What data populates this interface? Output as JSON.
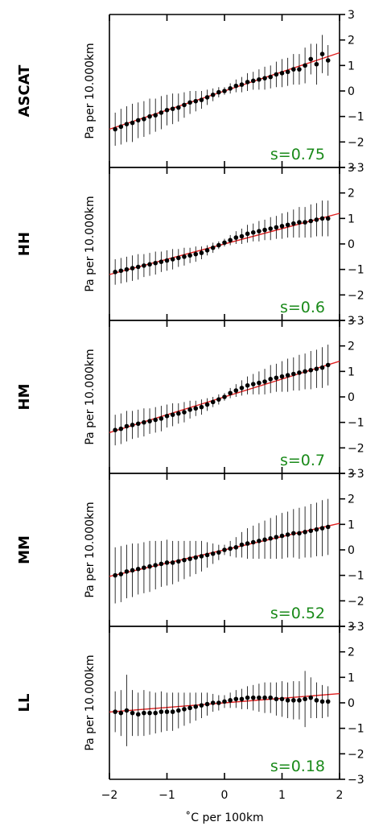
{
  "chart_data": {
    "type": "scatter",
    "xlabel": "$^\\circ$C per 100km",
    "ylabel": "Pa per 10.000km",
    "xlim": [
      -2,
      2
    ],
    "ylim": [
      -3,
      3
    ],
    "xticks": [
      -2,
      -1,
      0,
      1,
      2
    ],
    "yticks": [
      -3,
      -2,
      -1,
      0,
      1,
      2,
      3
    ],
    "xtick_labels": [
      "−2",
      "−1",
      "0",
      "1",
      "2"
    ],
    "ytick_labels": [
      "−3",
      "−2",
      "−1",
      "0",
      "1",
      "2",
      "3"
    ],
    "xlabel_display": "˚C per 100km",
    "fit_color": "#e02020",
    "point_color": "#000000",
    "slope_text_color": "#1a8a1a",
    "panels": [
      {
        "name": "ASCAT",
        "slope_label": "s=0.75",
        "fit": {
          "slope": 0.75,
          "intercept": 0.0
        },
        "x": [
          -1.9,
          -1.8,
          -1.7,
          -1.6,
          -1.5,
          -1.4,
          -1.3,
          -1.2,
          -1.1,
          -1.0,
          -0.9,
          -0.8,
          -0.7,
          -0.6,
          -0.5,
          -0.4,
          -0.3,
          -0.2,
          -0.1,
          0.0,
          0.1,
          0.2,
          0.3,
          0.4,
          0.5,
          0.6,
          0.7,
          0.8,
          0.9,
          1.0,
          1.1,
          1.2,
          1.3,
          1.4,
          1.5,
          1.6,
          1.7,
          1.8
        ],
        "y": [
          -1.5,
          -1.4,
          -1.3,
          -1.25,
          -1.15,
          -1.1,
          -1.0,
          -0.95,
          -0.85,
          -0.75,
          -0.7,
          -0.65,
          -0.55,
          -0.45,
          -0.4,
          -0.35,
          -0.25,
          -0.15,
          -0.05,
          0.0,
          0.1,
          0.2,
          0.25,
          0.35,
          0.4,
          0.45,
          0.5,
          0.55,
          0.65,
          0.7,
          0.75,
          0.85,
          0.85,
          1.0,
          1.25,
          1.05,
          1.45,
          1.2
        ],
        "err": [
          0.65,
          0.7,
          0.7,
          0.75,
          0.7,
          0.7,
          0.7,
          0.65,
          0.65,
          0.6,
          0.6,
          0.55,
          0.5,
          0.45,
          0.4,
          0.35,
          0.3,
          0.25,
          0.2,
          0.15,
          0.2,
          0.25,
          0.3,
          0.35,
          0.35,
          0.4,
          0.45,
          0.45,
          0.5,
          0.55,
          0.55,
          0.6,
          0.6,
          0.7,
          0.6,
          0.8,
          0.75,
          0.6
        ]
      },
      {
        "name": "HH",
        "slope_label": "s=0.6",
        "fit": {
          "slope": 0.6,
          "intercept": 0.0
        },
        "x": [
          -1.9,
          -1.8,
          -1.7,
          -1.6,
          -1.5,
          -1.4,
          -1.3,
          -1.2,
          -1.1,
          -1.0,
          -0.9,
          -0.8,
          -0.7,
          -0.6,
          -0.5,
          -0.4,
          -0.3,
          -0.2,
          -0.1,
          0.0,
          0.1,
          0.2,
          0.3,
          0.4,
          0.5,
          0.6,
          0.7,
          0.8,
          0.9,
          1.0,
          1.1,
          1.2,
          1.3,
          1.4,
          1.5,
          1.6,
          1.7,
          1.8
        ],
        "y": [
          -1.1,
          -1.05,
          -1.0,
          -0.95,
          -0.9,
          -0.85,
          -0.8,
          -0.75,
          -0.7,
          -0.65,
          -0.6,
          -0.55,
          -0.5,
          -0.45,
          -0.4,
          -0.35,
          -0.25,
          -0.15,
          -0.05,
          0.05,
          0.15,
          0.25,
          0.3,
          0.4,
          0.45,
          0.5,
          0.55,
          0.6,
          0.65,
          0.7,
          0.75,
          0.8,
          0.85,
          0.85,
          0.9,
          0.95,
          1.0,
          1.0
        ],
        "err": [
          0.5,
          0.5,
          0.5,
          0.5,
          0.5,
          0.45,
          0.45,
          0.45,
          0.4,
          0.4,
          0.4,
          0.35,
          0.35,
          0.3,
          0.3,
          0.25,
          0.2,
          0.2,
          0.15,
          0.15,
          0.2,
          0.25,
          0.3,
          0.35,
          0.35,
          0.4,
          0.4,
          0.45,
          0.45,
          0.5,
          0.5,
          0.55,
          0.6,
          0.6,
          0.65,
          0.65,
          0.7,
          0.7
        ]
      },
      {
        "name": "HM",
        "slope_label": "s=0.7",
        "fit": {
          "slope": 0.7,
          "intercept": 0.0
        },
        "x": [
          -1.9,
          -1.8,
          -1.7,
          -1.6,
          -1.5,
          -1.4,
          -1.3,
          -1.2,
          -1.1,
          -1.0,
          -0.9,
          -0.8,
          -0.7,
          -0.6,
          -0.5,
          -0.4,
          -0.3,
          -0.2,
          -0.1,
          0.0,
          0.1,
          0.2,
          0.3,
          0.4,
          0.5,
          0.6,
          0.7,
          0.8,
          0.9,
          1.0,
          1.1,
          1.2,
          1.3,
          1.4,
          1.5,
          1.6,
          1.7,
          1.8
        ],
        "y": [
          -1.3,
          -1.25,
          -1.15,
          -1.1,
          -1.05,
          -1.0,
          -0.95,
          -0.9,
          -0.85,
          -0.75,
          -0.7,
          -0.65,
          -0.6,
          -0.5,
          -0.45,
          -0.4,
          -0.3,
          -0.2,
          -0.1,
          0.0,
          0.15,
          0.25,
          0.35,
          0.45,
          0.5,
          0.55,
          0.6,
          0.7,
          0.75,
          0.8,
          0.85,
          0.9,
          0.95,
          1.0,
          1.05,
          1.1,
          1.15,
          1.25
        ],
        "err": [
          0.6,
          0.6,
          0.6,
          0.55,
          0.55,
          0.55,
          0.5,
          0.5,
          0.5,
          0.45,
          0.45,
          0.4,
          0.4,
          0.35,
          0.3,
          0.3,
          0.25,
          0.2,
          0.2,
          0.15,
          0.2,
          0.25,
          0.3,
          0.35,
          0.4,
          0.45,
          0.5,
          0.55,
          0.55,
          0.6,
          0.65,
          0.65,
          0.7,
          0.7,
          0.75,
          0.75,
          0.8,
          0.8
        ]
      },
      {
        "name": "MM",
        "slope_label": "s=0.52",
        "fit": {
          "slope": 0.52,
          "intercept": 0.0
        },
        "x": [
          -1.9,
          -1.8,
          -1.7,
          -1.6,
          -1.5,
          -1.4,
          -1.3,
          -1.2,
          -1.1,
          -1.0,
          -0.9,
          -0.8,
          -0.7,
          -0.6,
          -0.5,
          -0.4,
          -0.3,
          -0.2,
          -0.1,
          0.0,
          0.1,
          0.2,
          0.3,
          0.4,
          0.5,
          0.6,
          0.7,
          0.8,
          0.9,
          1.0,
          1.1,
          1.2,
          1.3,
          1.4,
          1.5,
          1.6,
          1.7,
          1.8
        ],
        "y": [
          -1.0,
          -0.95,
          -0.85,
          -0.8,
          -0.75,
          -0.7,
          -0.65,
          -0.6,
          -0.55,
          -0.5,
          -0.5,
          -0.45,
          -0.4,
          -0.35,
          -0.3,
          -0.25,
          -0.2,
          -0.15,
          -0.1,
          0.0,
          0.05,
          0.1,
          0.2,
          0.25,
          0.3,
          0.35,
          0.4,
          0.45,
          0.5,
          0.55,
          0.6,
          0.65,
          0.65,
          0.7,
          0.75,
          0.8,
          0.85,
          0.9
        ],
        "err": [
          1.1,
          1.1,
          1.05,
          1.05,
          1.0,
          1.0,
          1.0,
          0.95,
          0.9,
          0.9,
          0.85,
          0.8,
          0.75,
          0.7,
          0.65,
          0.6,
          0.5,
          0.4,
          0.3,
          0.2,
          0.3,
          0.4,
          0.5,
          0.6,
          0.65,
          0.7,
          0.75,
          0.8,
          0.85,
          0.9,
          0.9,
          0.95,
          1.0,
          1.0,
          1.05,
          1.05,
          1.1,
          1.1
        ]
      },
      {
        "name": "LL",
        "slope_label": "s=0.18",
        "fit": {
          "slope": 0.18,
          "intercept": 0.0
        },
        "x": [
          -1.9,
          -1.8,
          -1.7,
          -1.6,
          -1.5,
          -1.4,
          -1.3,
          -1.2,
          -1.1,
          -1.0,
          -0.9,
          -0.8,
          -0.7,
          -0.6,
          -0.5,
          -0.4,
          -0.3,
          -0.2,
          -0.1,
          0.0,
          0.1,
          0.2,
          0.3,
          0.4,
          0.5,
          0.6,
          0.7,
          0.8,
          0.9,
          1.0,
          1.1,
          1.2,
          1.3,
          1.4,
          1.5,
          1.6,
          1.7,
          1.8
        ],
        "y": [
          -0.35,
          -0.4,
          -0.3,
          -0.4,
          -0.45,
          -0.4,
          -0.4,
          -0.4,
          -0.35,
          -0.35,
          -0.35,
          -0.3,
          -0.25,
          -0.2,
          -0.15,
          -0.1,
          -0.05,
          0.0,
          0.0,
          0.05,
          0.1,
          0.15,
          0.15,
          0.2,
          0.2,
          0.2,
          0.2,
          0.2,
          0.15,
          0.15,
          0.1,
          0.1,
          0.1,
          0.15,
          0.2,
          0.1,
          0.05,
          0.05
        ],
        "err": [
          0.8,
          0.9,
          1.4,
          0.9,
          0.85,
          0.9,
          0.85,
          0.8,
          0.8,
          0.75,
          0.75,
          0.7,
          0.65,
          0.6,
          0.55,
          0.5,
          0.45,
          0.35,
          0.3,
          0.25,
          0.3,
          0.35,
          0.4,
          0.45,
          0.5,
          0.55,
          0.6,
          0.6,
          0.65,
          0.7,
          0.7,
          0.75,
          0.75,
          1.1,
          0.8,
          0.7,
          0.65,
          0.6
        ]
      }
    ]
  }
}
